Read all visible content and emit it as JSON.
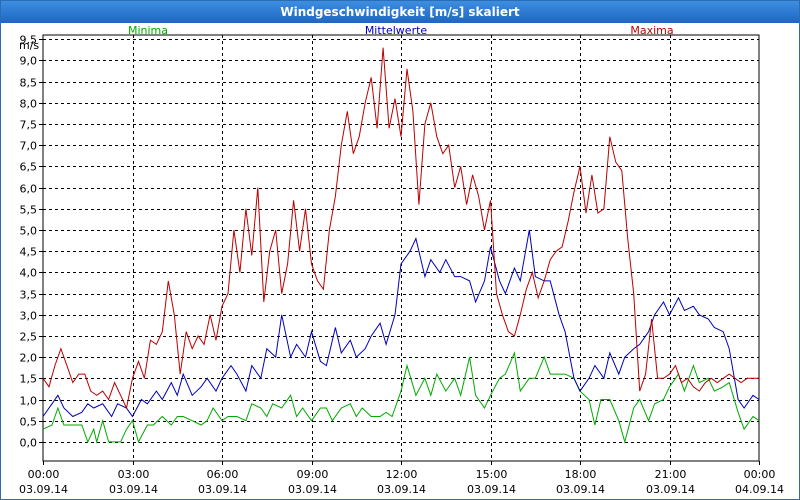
{
  "window": {
    "title": "Windgeschwindigkeit [m/s] skaliert"
  },
  "chart_data": {
    "type": "line",
    "title": "Windgeschwindigkeit [m/s] skaliert",
    "ylabel": "m/s",
    "xlabel": "",
    "ylim": [
      -0.45,
      9.6
    ],
    "xlim": [
      0,
      24
    ],
    "grid": true,
    "yticks": [
      "0,0",
      "0,5",
      "1,0",
      "1,5",
      "2,0",
      "2,5",
      "3,0",
      "3,5",
      "4,0",
      "4,5",
      "5,0",
      "5,5",
      "6,0",
      "6,5",
      "7,0",
      "7,5",
      "8,0",
      "8,5",
      "9,0",
      "9,5"
    ],
    "xticks": [
      {
        "time": "00:00",
        "date": "03.09.14"
      },
      {
        "time": "03:00",
        "date": "03.09.14"
      },
      {
        "time": "06:00",
        "date": "03.09.14"
      },
      {
        "time": "09:00",
        "date": "03.09.14"
      },
      {
        "time": "12:00",
        "date": "03.09.14"
      },
      {
        "time": "15:00",
        "date": "03.09.14"
      },
      {
        "time": "18:00",
        "date": "03.09.14"
      },
      {
        "time": "21:00",
        "date": "03.09.14"
      },
      {
        "time": "00:00",
        "date": "04.09.14"
      }
    ],
    "series": [
      {
        "name": "Minima",
        "color": "#00aa00",
        "x": [
          0,
          0.3,
          0.5,
          0.7,
          1.0,
          1.3,
          1.5,
          1.7,
          1.8,
          2.0,
          2.2,
          2.4,
          2.6,
          2.8,
          3.0,
          3.2,
          3.5,
          3.7,
          4.0,
          4.3,
          4.5,
          4.7,
          5.0,
          5.3,
          5.5,
          5.7,
          6.0,
          6.2,
          6.5,
          6.8,
          7.0,
          7.3,
          7.5,
          7.7,
          8.0,
          8.3,
          8.5,
          8.7,
          9.0,
          9.3,
          9.5,
          9.7,
          10.0,
          10.3,
          10.5,
          10.7,
          11.0,
          11.3,
          11.5,
          11.7,
          12.0,
          12.2,
          12.5,
          12.8,
          13.0,
          13.2,
          13.5,
          13.8,
          14.0,
          14.3,
          14.5,
          14.8,
          15.0,
          15.3,
          15.5,
          15.8,
          16.0,
          16.3,
          16.5,
          16.8,
          17.0,
          17.3,
          17.5,
          17.8,
          18.0,
          18.3,
          18.5,
          18.7,
          19.0,
          19.3,
          19.5,
          19.8,
          20.0,
          20.3,
          20.5,
          20.8,
          21.0,
          21.3,
          21.5,
          21.8,
          22.0,
          22.3,
          22.5,
          22.8,
          23.0,
          23.3,
          23.5,
          23.8,
          24.0
        ],
        "y": [
          0.3,
          0.4,
          0.8,
          0.4,
          0.4,
          0.4,
          0.0,
          0.3,
          0.0,
          0.5,
          0.0,
          0.0,
          0.0,
          0.3,
          0.5,
          0.0,
          0.4,
          0.4,
          0.6,
          0.4,
          0.6,
          0.6,
          0.5,
          0.4,
          0.5,
          0.8,
          0.5,
          0.6,
          0.6,
          0.5,
          0.9,
          0.8,
          0.6,
          0.9,
          0.8,
          1.1,
          0.6,
          0.8,
          0.5,
          0.8,
          0.8,
          0.5,
          0.8,
          0.9,
          0.6,
          0.8,
          0.6,
          0.6,
          0.7,
          0.6,
          1.2,
          1.8,
          1.1,
          1.5,
          1.1,
          1.6,
          1.2,
          1.5,
          1.1,
          2.0,
          1.1,
          0.8,
          1.1,
          1.5,
          1.6,
          2.1,
          1.2,
          1.5,
          1.5,
          2.0,
          1.6,
          1.6,
          1.6,
          1.5,
          1.2,
          1.0,
          0.4,
          1.0,
          1.0,
          0.5,
          0.0,
          0.8,
          1.0,
          0.5,
          0.9,
          1.0,
          1.3,
          1.6,
          1.2,
          1.8,
          1.4,
          1.5,
          1.2,
          1.3,
          1.4,
          0.7,
          0.3,
          0.6,
          0.5
        ]
      },
      {
        "name": "Mittelwerte",
        "color": "#0000bb",
        "x": [
          0,
          0.3,
          0.5,
          0.7,
          1.0,
          1.3,
          1.5,
          1.7,
          2.0,
          2.3,
          2.5,
          2.8,
          3.0,
          3.3,
          3.5,
          3.8,
          4.0,
          4.3,
          4.5,
          4.7,
          5.0,
          5.3,
          5.5,
          5.8,
          6.0,
          6.3,
          6.5,
          6.8,
          7.0,
          7.3,
          7.5,
          7.8,
          8.0,
          8.3,
          8.5,
          8.8,
          9.0,
          9.3,
          9.5,
          9.8,
          10.0,
          10.3,
          10.5,
          10.8,
          11.0,
          11.3,
          11.5,
          11.8,
          12.0,
          12.3,
          12.5,
          12.8,
          13.0,
          13.3,
          13.5,
          13.8,
          14.0,
          14.3,
          14.5,
          14.8,
          15.0,
          15.3,
          15.5,
          15.8,
          16.0,
          16.3,
          16.5,
          16.8,
          17.0,
          17.3,
          17.5,
          17.8,
          18.0,
          18.3,
          18.5,
          18.8,
          19.0,
          19.3,
          19.5,
          19.8,
          20.0,
          20.3,
          20.5,
          20.8,
          21.0,
          21.3,
          21.5,
          21.8,
          22.0,
          22.3,
          22.5,
          22.8,
          23.0,
          23.3,
          23.5,
          23.8,
          24.0
        ],
        "y": [
          0.6,
          0.9,
          1.1,
          0.8,
          0.6,
          0.7,
          0.9,
          0.8,
          0.9,
          0.6,
          0.9,
          0.8,
          0.6,
          1.0,
          0.9,
          1.2,
          1.0,
          1.4,
          1.1,
          1.6,
          1.1,
          1.3,
          1.5,
          1.2,
          1.5,
          1.8,
          1.6,
          1.2,
          1.8,
          1.5,
          2.2,
          2.0,
          3.0,
          2.0,
          2.3,
          2.0,
          2.6,
          1.9,
          1.8,
          2.7,
          2.1,
          2.4,
          2.0,
          2.2,
          2.5,
          2.8,
          2.3,
          3.0,
          4.2,
          4.5,
          4.8,
          3.9,
          4.3,
          4.0,
          4.3,
          3.9,
          3.9,
          3.8,
          3.3,
          3.8,
          4.6,
          3.8,
          3.5,
          4.1,
          3.8,
          5.0,
          3.9,
          3.8,
          3.8,
          3.0,
          2.6,
          1.5,
          1.2,
          1.5,
          1.8,
          1.5,
          2.1,
          1.6,
          2.0,
          2.2,
          2.3,
          2.6,
          3.0,
          3.3,
          3.0,
          3.4,
          3.1,
          3.2,
          3.0,
          2.9,
          2.7,
          2.6,
          2.2,
          1.0,
          0.8,
          1.1,
          1.0
        ]
      },
      {
        "name": "Maxima",
        "color": "#bb0000",
        "x": [
          0,
          0.2,
          0.4,
          0.6,
          0.8,
          1.0,
          1.2,
          1.4,
          1.6,
          1.8,
          2.0,
          2.2,
          2.4,
          2.6,
          2.8,
          3.0,
          3.2,
          3.4,
          3.6,
          3.8,
          4.0,
          4.2,
          4.4,
          4.6,
          4.8,
          5.0,
          5.2,
          5.4,
          5.6,
          5.8,
          6.0,
          6.2,
          6.4,
          6.6,
          6.8,
          7.0,
          7.2,
          7.4,
          7.6,
          7.8,
          8.0,
          8.2,
          8.4,
          8.6,
          8.8,
          9.0,
          9.2,
          9.4,
          9.6,
          9.8,
          10.0,
          10.2,
          10.4,
          10.6,
          10.8,
          11.0,
          11.2,
          11.4,
          11.6,
          11.8,
          12.0,
          12.2,
          12.4,
          12.6,
          12.8,
          13.0,
          13.2,
          13.4,
          13.6,
          13.8,
          14.0,
          14.2,
          14.4,
          14.6,
          14.8,
          15.0,
          15.2,
          15.4,
          15.6,
          15.8,
          16.0,
          16.2,
          16.4,
          16.6,
          16.8,
          17.0,
          17.2,
          17.4,
          17.6,
          17.8,
          18.0,
          18.2,
          18.4,
          18.6,
          18.8,
          19.0,
          19.2,
          19.4,
          19.6,
          19.8,
          20.0,
          20.2,
          20.4,
          20.6,
          20.8,
          21.0,
          21.2,
          21.4,
          21.6,
          21.8,
          22.0,
          22.2,
          22.4,
          22.6,
          22.8,
          23.0,
          23.2,
          23.4,
          23.6,
          23.8,
          24.0
        ],
        "y": [
          1.5,
          1.3,
          1.8,
          2.2,
          1.8,
          1.4,
          1.6,
          1.6,
          1.2,
          1.1,
          1.2,
          1.0,
          1.4,
          1.1,
          0.8,
          1.5,
          1.9,
          1.5,
          2.4,
          2.3,
          2.6,
          3.8,
          3.0,
          1.6,
          2.6,
          2.2,
          2.5,
          2.3,
          3.0,
          2.4,
          3.2,
          3.5,
          5.0,
          4.0,
          5.5,
          4.4,
          6.0,
          3.3,
          4.5,
          5.0,
          3.5,
          4.2,
          5.7,
          4.5,
          5.5,
          4.2,
          3.8,
          3.6,
          5.0,
          5.8,
          7.0,
          7.8,
          6.8,
          7.2,
          8.0,
          8.6,
          7.4,
          9.3,
          7.4,
          8.1,
          7.2,
          8.8,
          7.8,
          5.6,
          7.5,
          8.0,
          7.2,
          6.8,
          7.0,
          6.0,
          6.5,
          5.6,
          6.3,
          5.8,
          5.0,
          5.7,
          3.5,
          3.0,
          2.6,
          2.5,
          3.0,
          3.6,
          4.0,
          3.4,
          3.8,
          4.3,
          4.5,
          4.6,
          5.2,
          5.9,
          6.5,
          5.4,
          6.3,
          5.4,
          5.5,
          7.2,
          6.6,
          6.4,
          4.8,
          3.5,
          1.2,
          1.6,
          2.9,
          1.5,
          1.5,
          1.6,
          1.8,
          1.4,
          1.5,
          1.3,
          1.2,
          1.4,
          1.5,
          1.4,
          1.5,
          1.6,
          1.5,
          1.4,
          1.5,
          1.5,
          1.5
        ]
      }
    ]
  }
}
